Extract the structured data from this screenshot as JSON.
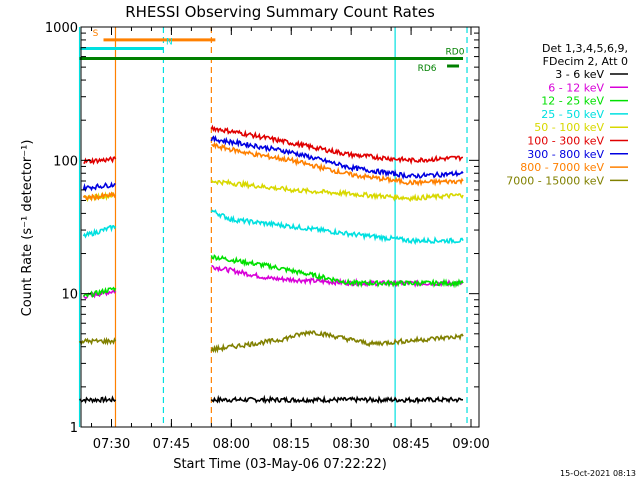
{
  "chart_data": {
    "type": "line",
    "title": "RHESSI Observing Summary Count Rates",
    "xlabel": "Start Time (03-May-06 07:22:22)",
    "ylabel": "Count Rate (s⁻¹ detector⁻¹)",
    "y_scale": "log",
    "ylim": [
      1,
      1000
    ],
    "xlim": [
      "07:22:22",
      "09:02:00"
    ],
    "x_ticks": [
      "07:30",
      "07:45",
      "08:00",
      "08:15",
      "08:30",
      "08:45",
      "09:00"
    ],
    "y_ticks": [
      "1",
      "10",
      "100",
      "1000"
    ],
    "footer_date": "15-Oct-2021 08:13",
    "legend": {
      "placement": "right",
      "header": [
        "Det 1,3,4,5,6,9,",
        "FDecim 2, Att 0"
      ]
    },
    "series": [
      {
        "name": "3 - 6 keV",
        "color": "#000000",
        "segments": [
          {
            "x": [
              "07:22",
              "07:31"
            ],
            "y": [
              1.6,
              1.6
            ]
          },
          {
            "x": [
              "07:55",
              "08:58"
            ],
            "y": [
              1.6,
              1.6
            ]
          }
        ]
      },
      {
        "name": "6 - 12 keV",
        "color": "#d800d8",
        "segments": [
          {
            "x": [
              "07:23",
              "07:31"
            ],
            "y": [
              9.5,
              10.5
            ]
          },
          {
            "x": [
              "07:55",
              "08:10",
              "08:30",
              "08:58"
            ],
            "y": [
              16,
              13,
              12,
              12
            ]
          }
        ]
      },
      {
        "name": "12 - 25 keV",
        "color": "#00e000",
        "segments": [
          {
            "x": [
              "07:23",
              "07:31"
            ],
            "y": [
              9.5,
              11
            ]
          },
          {
            "x": [
              "07:55",
              "08:10",
              "08:30",
              "08:58"
            ],
            "y": [
              19,
              16,
              12,
              12
            ]
          }
        ]
      },
      {
        "name": "25 - 50 keV",
        "color": "#00e0e0",
        "segments": [
          {
            "x": [
              "07:23",
              "07:31"
            ],
            "y": [
              27,
              32
            ]
          },
          {
            "x": [
              "07:55",
              "08:00",
              "08:15",
              "08:30",
              "08:45",
              "08:58"
            ],
            "y": [
              42,
              36,
              32,
              28,
              25,
              25
            ]
          }
        ]
      },
      {
        "name": "50 - 100 keV",
        "color": "#d8d800",
        "segments": [
          {
            "x": [
              "07:23",
              "07:31"
            ],
            "y": [
              52,
              55
            ]
          },
          {
            "x": [
              "07:55",
              "08:05",
              "08:15",
              "08:30",
              "08:45",
              "08:58"
            ],
            "y": [
              70,
              65,
              60,
              56,
              52,
              55
            ]
          }
        ]
      },
      {
        "name": "100 - 300 keV",
        "color": "#e00000",
        "segments": [
          {
            "x": [
              "07:23",
              "07:31"
            ],
            "y": [
              98,
              102
            ]
          },
          {
            "x": [
              "07:55",
              "08:05",
              "08:15",
              "08:30",
              "08:45",
              "08:58"
            ],
            "y": [
              175,
              155,
              135,
              110,
              100,
              105
            ]
          }
        ]
      },
      {
        "name": "300 - 800 keV",
        "color": "#0000e0",
        "segments": [
          {
            "x": [
              "07:23",
              "07:31"
            ],
            "y": [
              62,
              66
            ]
          },
          {
            "x": [
              "07:55",
              "08:05",
              "08:15",
              "08:30",
              "08:45",
              "08:58"
            ],
            "y": [
              145,
              130,
              115,
              88,
              76,
              80
            ]
          }
        ]
      },
      {
        "name": "800 - 7000 keV",
        "color": "#ff8000",
        "segments": [
          {
            "x": [
              "07:23",
              "07:31"
            ],
            "y": [
              52,
              55
            ]
          },
          {
            "x": [
              "07:55",
              "08:05",
              "08:15",
              "08:30",
              "08:45",
              "08:58"
            ],
            "y": [
              130,
              112,
              100,
              78,
              68,
              70
            ]
          }
        ]
      },
      {
        "name": "7000 - 15000 keV",
        "color": "#808000",
        "segments": [
          {
            "x": [
              "07:22",
              "07:31"
            ],
            "y": [
              4.4,
              4.4
            ]
          },
          {
            "x": [
              "07:55",
              "08:12",
              "08:20",
              "08:35",
              "08:58"
            ],
            "y": [
              3.8,
              4.5,
              5.2,
              4.2,
              4.8
            ]
          }
        ]
      }
    ],
    "annotations": [
      {
        "label": "S",
        "color": "#ff8000",
        "start": "07:28",
        "end": "07:56",
        "y": 800
      },
      {
        "label": "N",
        "color": "#00e0e0",
        "start": "07:22",
        "end": "07:43",
        "y": 690
      },
      {
        "label": "RD0",
        "color": "#008000",
        "start": "07:22",
        "end": "08:58",
        "y": 580
      },
      {
        "label": "RD6",
        "color": "#008000",
        "start": "08:54",
        "end": "08:57",
        "y": 510
      }
    ],
    "vertical_markers": [
      {
        "x": "07:31",
        "color": "#ff8000",
        "style": "solid"
      },
      {
        "x": "07:55",
        "color": "#ff8000",
        "style": "dashed"
      },
      {
        "x": "07:43",
        "color": "#00e0e0",
        "style": "dashed"
      },
      {
        "x": "07:22",
        "color": "#00e0e0",
        "style": "solid"
      },
      {
        "x": "08:41",
        "color": "#00e0e0",
        "style": "solid"
      },
      {
        "x": "08:59",
        "color": "#00e0e0",
        "style": "dashed"
      }
    ]
  }
}
